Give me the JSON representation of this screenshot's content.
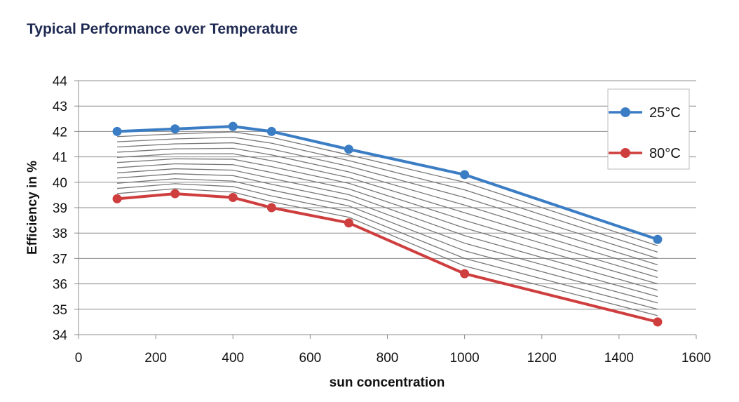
{
  "chart_data": {
    "type": "line",
    "title": "Typical Performance over Temperature",
    "xlabel": "sun concentration",
    "ylabel": "Efficiency in %",
    "xlim": [
      0,
      1600
    ],
    "ylim": [
      34,
      44
    ],
    "x_ticks": [
      0,
      200,
      400,
      600,
      800,
      1000,
      1200,
      1400,
      1600
    ],
    "y_ticks": [
      34,
      35,
      36,
      37,
      38,
      39,
      40,
      41,
      42,
      43,
      44
    ],
    "grid": true,
    "legend_position": "top-right",
    "series": [
      {
        "name": "25°C",
        "color": "#3b7dc4",
        "x": [
          100,
          250,
          400,
          500,
          700,
          1000,
          1500
        ],
        "y": [
          42.0,
          42.1,
          42.2,
          42.0,
          41.3,
          40.3,
          37.75
        ]
      },
      {
        "name": "80°C",
        "color": "#cf3e3e",
        "x": [
          100,
          250,
          400,
          500,
          700,
          1000,
          1500
        ],
        "y": [
          39.35,
          39.55,
          39.4,
          39.0,
          38.4,
          36.4,
          34.5
        ]
      }
    ],
    "intermediate_lines": {
      "count": 12,
      "color": "#777777"
    }
  }
}
